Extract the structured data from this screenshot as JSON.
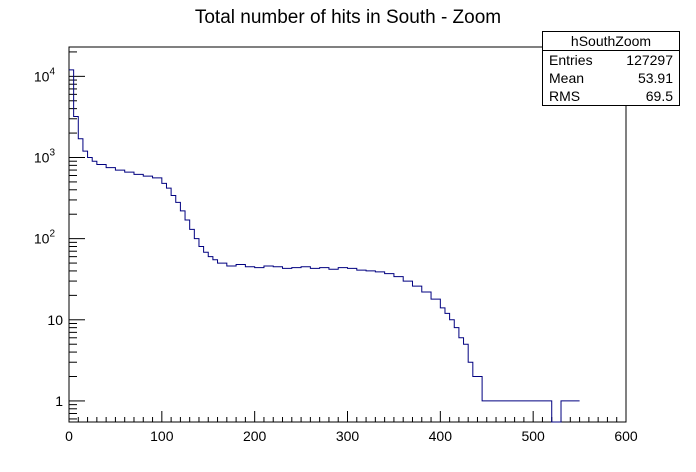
{
  "chart_data": {
    "type": "histogram",
    "title": "Total number of hits in South - Zoom",
    "xlabel": "",
    "ylabel": "",
    "xlim": [
      0,
      600
    ],
    "ylim": [
      0.55,
      23000
    ],
    "y_scale": "log",
    "grid": false,
    "line_color": "#000080",
    "x_ticks": [
      0,
      100,
      200,
      300,
      400,
      500,
      600
    ],
    "x_tick_labels": [
      "0",
      "100",
      "200",
      "300",
      "400",
      "500",
      "600"
    ],
    "y_ticks": [
      1,
      10,
      100,
      1000,
      10000
    ],
    "y_tick_labels": [
      {
        "base": "1",
        "exp": ""
      },
      {
        "base": "10",
        "exp": ""
      },
      {
        "base": "10",
        "exp": "2"
      },
      {
        "base": "10",
        "exp": "3"
      },
      {
        "base": "10",
        "exp": "4"
      }
    ],
    "series": [
      {
        "x": [
          0,
          5,
          10,
          15,
          20,
          25,
          30,
          40,
          50,
          60,
          70,
          80,
          90,
          100,
          105,
          110,
          115,
          120,
          125,
          130,
          135,
          140,
          145,
          150,
          155,
          160,
          170,
          180,
          190,
          200,
          210,
          220,
          230,
          240,
          250,
          260,
          270,
          280,
          290,
          300,
          310,
          320,
          330,
          340,
          350,
          360,
          370,
          380,
          390,
          400,
          405,
          410,
          415,
          420,
          425,
          430,
          435,
          440,
          445,
          450,
          460,
          470,
          480,
          490,
          500,
          510,
          520,
          530,
          540
        ],
        "y": [
          12000,
          3200,
          1700,
          1200,
          1000,
          900,
          820,
          750,
          700,
          660,
          620,
          590,
          560,
          480,
          420,
          340,
          280,
          220,
          170,
          130,
          100,
          80,
          68,
          60,
          55,
          50,
          46,
          48,
          45,
          44,
          46,
          45,
          43,
          44,
          45,
          43,
          44,
          42,
          44,
          43,
          41,
          40,
          39,
          37,
          34,
          30,
          26,
          22,
          18,
          14,
          12,
          10,
          8,
          6,
          5,
          3,
          2,
          2,
          1,
          1,
          1,
          1,
          1,
          1,
          1,
          1,
          0,
          1,
          1
        ]
      }
    ]
  },
  "stats": {
    "name": "hSouthZoom",
    "rows": [
      {
        "label": "Entries",
        "value": "127297"
      },
      {
        "label": "Mean",
        "value": "53.91"
      },
      {
        "label": "RMS",
        "value": "69.5"
      }
    ]
  }
}
